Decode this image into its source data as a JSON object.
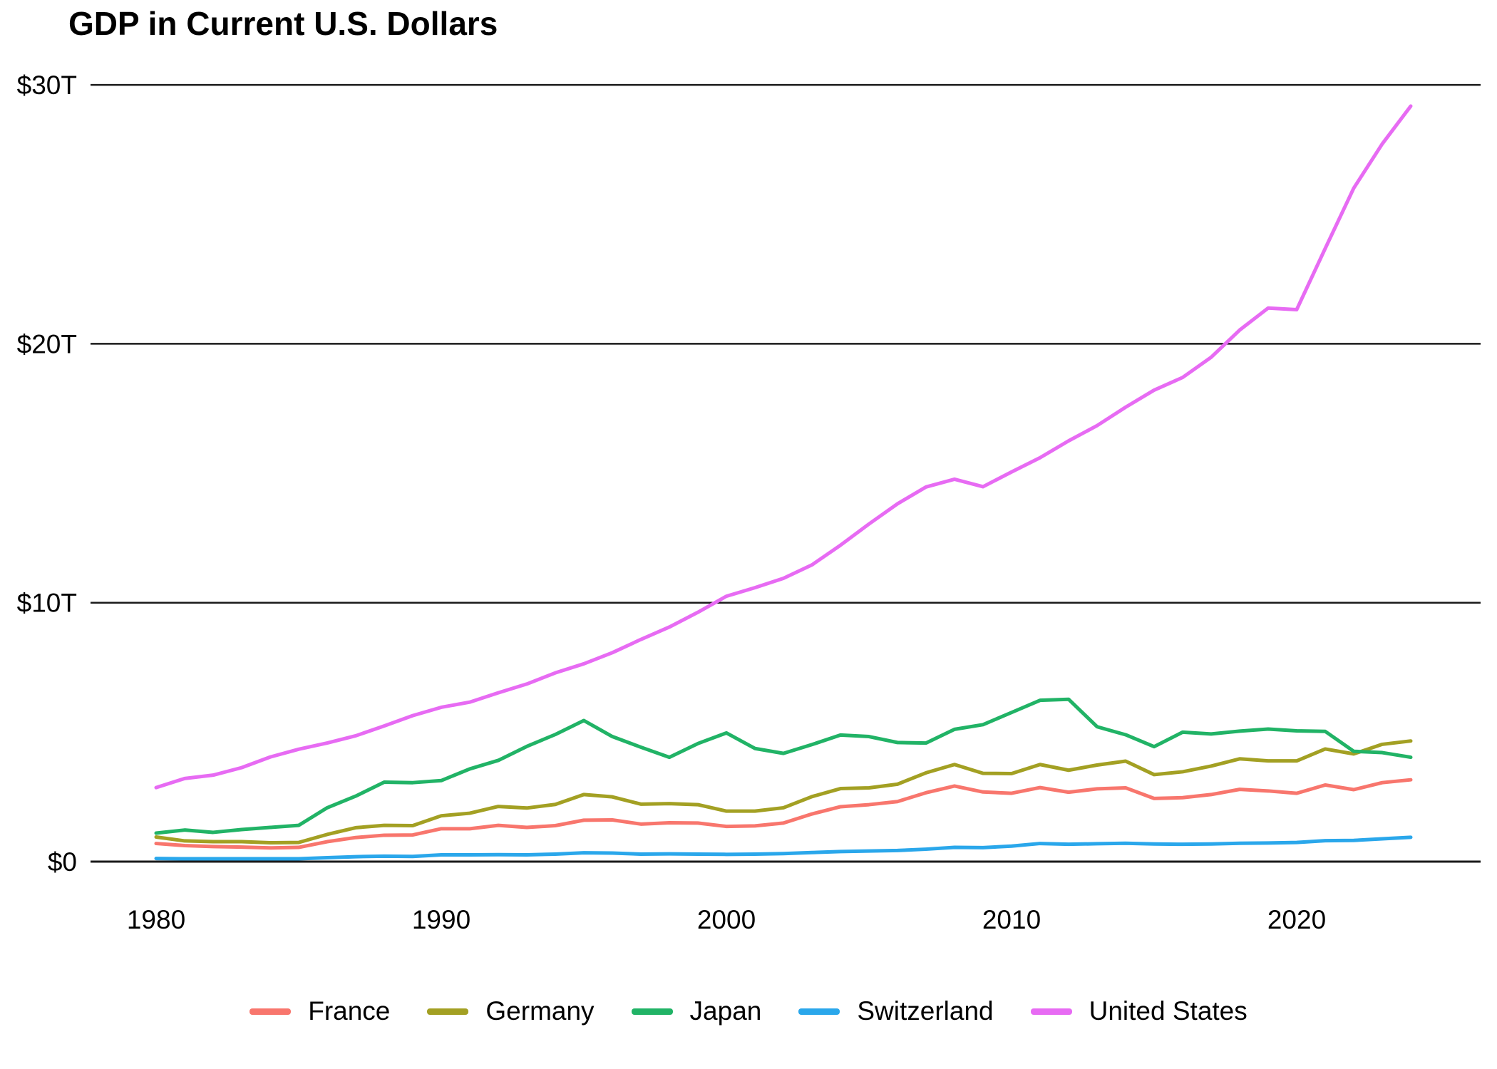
{
  "chart_data": {
    "type": "line",
    "title": "GDP in Current U.S. Dollars",
    "xlabel": "",
    "ylabel": "",
    "units": "trillions of current U.S. dollars",
    "grid": "horizontal",
    "legend_position": "bottom-center",
    "xlim": [
      1977.7,
      2026.5
    ],
    "ylim": [
      0,
      30
    ],
    "x_ticks": [
      {
        "label": "1980",
        "value": 1980
      },
      {
        "label": "1990",
        "value": 1990
      },
      {
        "label": "2000",
        "value": 2000
      },
      {
        "label": "2010",
        "value": 2010
      },
      {
        "label": "2020",
        "value": 2020
      }
    ],
    "y_ticks": [
      {
        "label": "$0",
        "value": 0
      },
      {
        "label": "$10T",
        "value": 10
      },
      {
        "label": "$20T",
        "value": 20
      },
      {
        "label": "$30T",
        "value": 30
      }
    ],
    "years": [
      1980,
      1981,
      1982,
      1983,
      1984,
      1985,
      1986,
      1987,
      1988,
      1989,
      1990,
      1991,
      1992,
      1993,
      1994,
      1995,
      1996,
      1997,
      1998,
      1999,
      2000,
      2001,
      2002,
      2003,
      2004,
      2005,
      2006,
      2007,
      2008,
      2009,
      2010,
      2011,
      2012,
      2013,
      2014,
      2015,
      2016,
      2017,
      2018,
      2019,
      2020,
      2021,
      2022,
      2023,
      2024
    ],
    "series": [
      {
        "name": "France",
        "color": "#F8766D",
        "values": [
          0.7,
          0.62,
          0.58,
          0.56,
          0.53,
          0.55,
          0.77,
          0.93,
          1.02,
          1.03,
          1.27,
          1.27,
          1.4,
          1.32,
          1.39,
          1.6,
          1.61,
          1.45,
          1.5,
          1.49,
          1.36,
          1.38,
          1.49,
          1.84,
          2.12,
          2.2,
          2.32,
          2.66,
          2.92,
          2.69,
          2.64,
          2.86,
          2.68,
          2.81,
          2.85,
          2.44,
          2.47,
          2.59,
          2.79,
          2.73,
          2.64,
          2.96,
          2.78,
          3.05,
          3.16
        ]
      },
      {
        "name": "Germany",
        "color": "#A3A023",
        "values": [
          0.95,
          0.8,
          0.77,
          0.77,
          0.73,
          0.74,
          1.05,
          1.31,
          1.4,
          1.39,
          1.77,
          1.87,
          2.13,
          2.07,
          2.21,
          2.59,
          2.5,
          2.22,
          2.24,
          2.2,
          1.95,
          1.95,
          2.08,
          2.51,
          2.82,
          2.85,
          2.99,
          3.43,
          3.75,
          3.41,
          3.4,
          3.75,
          3.53,
          3.73,
          3.88,
          3.36,
          3.47,
          3.69,
          3.97,
          3.89,
          3.89,
          4.35,
          4.16,
          4.53,
          4.66
        ]
      },
      {
        "name": "Japan",
        "color": "#21B366",
        "values": [
          1.1,
          1.22,
          1.13,
          1.24,
          1.32,
          1.4,
          2.08,
          2.53,
          3.07,
          3.05,
          3.13,
          3.58,
          3.91,
          4.45,
          4.91,
          5.45,
          4.83,
          4.42,
          4.03,
          4.56,
          4.97,
          4.37,
          4.18,
          4.52,
          4.89,
          4.83,
          4.6,
          4.58,
          5.11,
          5.29,
          5.76,
          6.23,
          6.27,
          5.21,
          4.9,
          4.44,
          5.0,
          4.93,
          5.04,
          5.12,
          5.05,
          5.03,
          4.26,
          4.21,
          4.03
        ]
      },
      {
        "name": "Switzerland",
        "color": "#2AA7EB",
        "values": [
          0.12,
          0.11,
          0.11,
          0.11,
          0.11,
          0.11,
          0.15,
          0.19,
          0.21,
          0.2,
          0.26,
          0.26,
          0.27,
          0.26,
          0.29,
          0.34,
          0.33,
          0.29,
          0.3,
          0.29,
          0.28,
          0.29,
          0.31,
          0.35,
          0.39,
          0.41,
          0.43,
          0.48,
          0.55,
          0.54,
          0.6,
          0.7,
          0.67,
          0.69,
          0.71,
          0.68,
          0.67,
          0.68,
          0.71,
          0.72,
          0.74,
          0.81,
          0.82,
          0.88,
          0.94
        ]
      },
      {
        "name": "United States",
        "color": "#E76BF3",
        "values": [
          2.86,
          3.21,
          3.34,
          3.63,
          4.04,
          4.34,
          4.58,
          4.86,
          5.24,
          5.64,
          5.96,
          6.16,
          6.52,
          6.86,
          7.29,
          7.64,
          8.07,
          8.58,
          9.06,
          9.63,
          10.25,
          10.58,
          10.94,
          11.46,
          12.22,
          13.04,
          13.82,
          14.47,
          14.77,
          14.48,
          15.05,
          15.6,
          16.25,
          16.84,
          17.55,
          18.21,
          18.7,
          19.48,
          20.53,
          21.38,
          21.32,
          23.68,
          26.01,
          27.72,
          29.18
        ]
      }
    ],
    "gridline_color": "#1a1a1a"
  }
}
